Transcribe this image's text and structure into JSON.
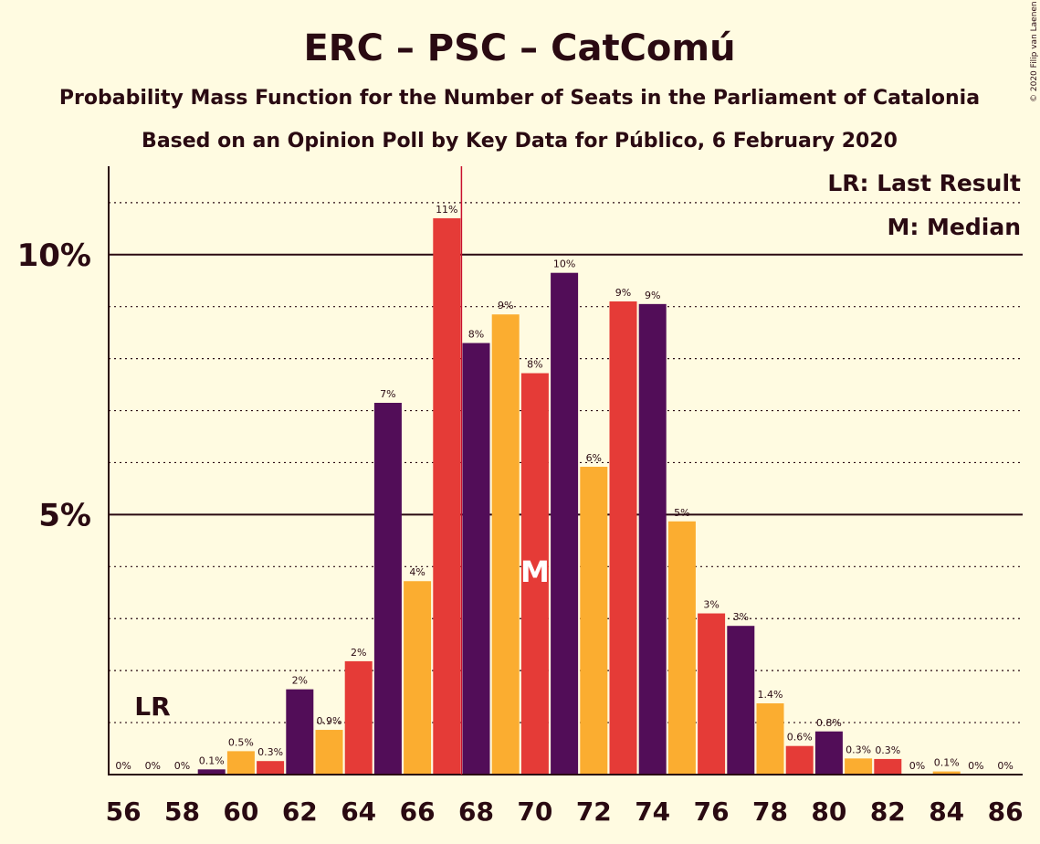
{
  "title": "ERC – PSC – CatComú",
  "subtitle1": "Probability Mass Function for the Number of Seats in the Parliament of Catalonia",
  "subtitle2": "Based on an Opinion Poll by Key Data for Público, 6 February 2020",
  "copyright": "© 2020 Filip van Laenen",
  "legend": {
    "lr": "LR: Last Result",
    "median": "M: Median"
  },
  "lr_label": "LR",
  "median_label": "M",
  "chart_data": {
    "type": "bar",
    "title": "ERC – PSC – CatComú",
    "xlabel": "",
    "ylabel": "",
    "ylim": [
      0,
      11.7
    ],
    "grid": "dotted minor every 1%, solid major every 5%",
    "legend_placement": "top-right",
    "colors": [
      "#520d58",
      "#fbad30",
      "#e53b37"
    ],
    "last_result": 68,
    "median": 70,
    "seats": [
      56,
      57,
      58,
      59,
      60,
      61,
      62,
      63,
      64,
      65,
      66,
      67,
      68,
      69,
      70,
      71,
      72,
      73,
      74,
      75,
      76,
      77,
      78,
      79,
      80,
      81,
      82,
      83,
      84,
      85,
      86
    ],
    "values": [
      0,
      0,
      0,
      0.1,
      0.45,
      0.26,
      1.64,
      0.86,
      2.18,
      7.15,
      3.72,
      10.7,
      8.3,
      8.85,
      7.72,
      9.65,
      5.92,
      9.1,
      9.05,
      4.87,
      3.1,
      2.86,
      1.37,
      0.55,
      0.83,
      0.31,
      0.3,
      0,
      0.06,
      0,
      0
    ],
    "labels": [
      "0%",
      "0%",
      "0%",
      "0.1%",
      "0.5%",
      "0.3%",
      "2%",
      "0.9%",
      "2%",
      "7%",
      "4%",
      "11%",
      "8%",
      "9%",
      "8%",
      "10%",
      "6%",
      "9%",
      "9%",
      "5%",
      "3%",
      "3%",
      "1.4%",
      "0.6%",
      "0.8%",
      "0.3%",
      "0.3%",
      "0%",
      "0.1%",
      "0%",
      "0%"
    ],
    "yticks": [
      {
        "value": 5,
        "label": "5%"
      },
      {
        "value": 10,
        "label": "10%"
      }
    ],
    "xticks": [
      56,
      58,
      60,
      62,
      64,
      66,
      68,
      70,
      72,
      74,
      76,
      78,
      80,
      82,
      84,
      86
    ]
  }
}
